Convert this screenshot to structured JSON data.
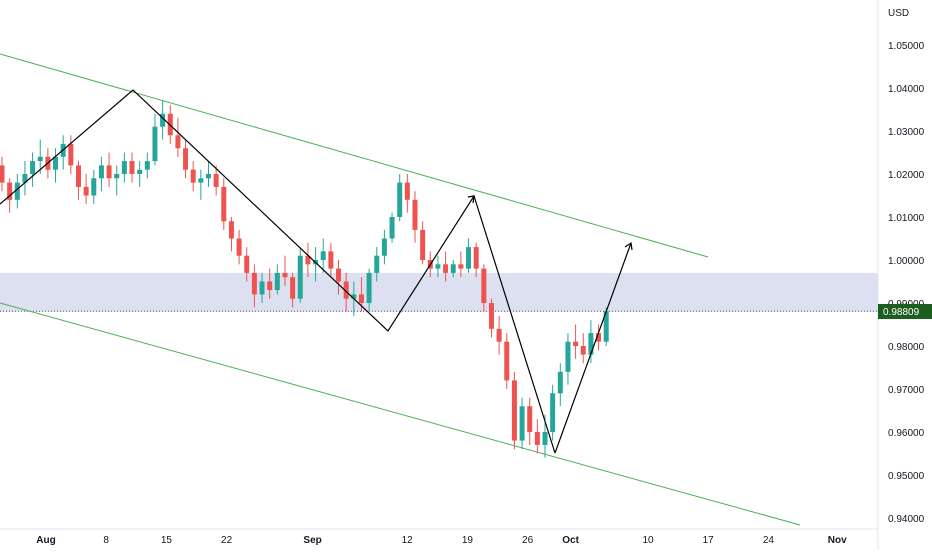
{
  "chart_data": {
    "type": "candlestick",
    "currency": "USD",
    "last_price": "0.98809",
    "y_ticks": [
      "1.05000",
      "1.04000",
      "1.03000",
      "1.02000",
      "1.01000",
      "1.00000",
      "0.99000",
      "0.98000",
      "0.97000",
      "0.96000",
      "0.95000",
      "0.94000"
    ],
    "x_ticks": [
      "Aug",
      "8",
      "15",
      "22",
      "Sep",
      "12",
      "19",
      "26",
      "Oct",
      "10",
      "17",
      "24",
      "Nov"
    ],
    "ylim": [
      0.9388,
      1.0574
    ],
    "grid": false,
    "colors": {
      "up": "#26a69a",
      "down": "#ef5350",
      "channel": "#4caf50",
      "zone": "#d6dbef",
      "pattern": "#000000",
      "price_label": "#1b5e20"
    },
    "candles_ohlc": [
      [
        1.022,
        1.024,
        1.016,
        1.018
      ],
      [
        1.018,
        1.019,
        1.011,
        1.014
      ],
      [
        1.014,
        1.02,
        1.012,
        1.018
      ],
      [
        1.018,
        1.023,
        1.015,
        1.02
      ],
      [
        1.02,
        1.025,
        1.017,
        1.023
      ],
      [
        1.023,
        1.028,
        1.02,
        1.024
      ],
      [
        1.024,
        1.026,
        1.019,
        1.021
      ],
      [
        1.021,
        1.026,
        1.018,
        1.024
      ],
      [
        1.024,
        1.029,
        1.021,
        1.027
      ],
      [
        1.027,
        1.029,
        1.02,
        1.022
      ],
      [
        1.022,
        1.023,
        1.014,
        1.017
      ],
      [
        1.017,
        1.02,
        1.013,
        1.015
      ],
      [
        1.015,
        1.021,
        1.013,
        1.019
      ],
      [
        1.019,
        1.024,
        1.016,
        1.022
      ],
      [
        1.022,
        1.025,
        1.017,
        1.019
      ],
      [
        1.019,
        1.022,
        1.015,
        1.02
      ],
      [
        1.02,
        1.025,
        1.018,
        1.023
      ],
      [
        1.023,
        1.025,
        1.018,
        1.02
      ],
      [
        1.02,
        1.023,
        1.017,
        1.021
      ],
      [
        1.021,
        1.025,
        1.019,
        1.023
      ],
      [
        1.023,
        1.034,
        1.022,
        1.031
      ],
      [
        1.031,
        1.037,
        1.028,
        1.034
      ],
      [
        1.034,
        1.036,
        1.027,
        1.029
      ],
      [
        1.029,
        1.033,
        1.024,
        1.026
      ],
      [
        1.026,
        1.028,
        1.019,
        1.021
      ],
      [
        1.021,
        1.023,
        1.016,
        1.018
      ],
      [
        1.018,
        1.021,
        1.014,
        1.019
      ],
      [
        1.019,
        1.023,
        1.017,
        1.02
      ],
      [
        1.02,
        1.022,
        1.015,
        1.017
      ],
      [
        1.017,
        1.019,
        1.007,
        1.009
      ],
      [
        1.009,
        1.01,
        1.002,
        1.005
      ],
      [
        1.005,
        1.007,
        0.999,
        1.001
      ],
      [
        1.001,
        1.003,
        0.995,
        0.997
      ],
      [
        0.997,
        0.999,
        0.989,
        0.992
      ],
      [
        0.992,
        0.997,
        0.99,
        0.995
      ],
      [
        0.995,
        0.998,
        0.991,
        0.993
      ],
      [
        0.993,
        0.999,
        0.992,
        0.997
      ],
      [
        0.997,
        1.001,
        0.994,
        0.996
      ],
      [
        0.996,
        0.997,
        0.989,
        0.991
      ],
      [
        0.991,
        1.003,
        0.99,
        1.001
      ],
      [
        1.001,
        1.004,
        0.996,
        0.999
      ],
      [
        0.999,
        1.003,
        0.995,
        1.0
      ],
      [
        1.0,
        1.005,
        0.997,
        1.002
      ],
      [
        1.002,
        1.004,
        0.996,
        0.998
      ],
      [
        0.998,
        1.0,
        0.992,
        0.995
      ],
      [
        0.995,
        0.997,
        0.988,
        0.991
      ],
      [
        0.991,
        0.995,
        0.987,
        0.992
      ],
      [
        0.992,
        0.996,
        0.988,
        0.99
      ],
      [
        0.99,
        0.998,
        0.988,
        0.997
      ],
      [
        0.997,
        1.003,
        0.995,
        1.001
      ],
      [
        1.001,
        1.007,
        0.999,
        1.005
      ],
      [
        1.005,
        1.011,
        1.004,
        1.01
      ],
      [
        1.01,
        1.02,
        1.009,
        1.018
      ],
      [
        1.018,
        1.02,
        1.011,
        1.014
      ],
      [
        1.014,
        1.016,
        1.004,
        1.007
      ],
      [
        1.007,
        1.009,
        0.999,
        1.0
      ],
      [
        1.0,
        1.002,
        0.996,
        0.998
      ],
      [
        0.998,
        1.001,
        0.996,
        0.999
      ],
      [
        0.999,
        1.002,
        0.995,
        0.997
      ],
      [
        0.997,
        1.0,
        0.996,
        0.999
      ],
      [
        0.999,
        1.002,
        0.996,
        0.998
      ],
      [
        0.998,
        1.005,
        0.997,
        1.003
      ],
      [
        1.003,
        1.004,
        0.996,
        0.998
      ],
      [
        0.998,
        0.999,
        0.988,
        0.99
      ],
      [
        0.99,
        0.991,
        0.982,
        0.984
      ],
      [
        0.984,
        0.987,
        0.978,
        0.981
      ],
      [
        0.981,
        0.983,
        0.97,
        0.972
      ],
      [
        0.972,
        0.974,
        0.956,
        0.958
      ],
      [
        0.958,
        0.968,
        0.956,
        0.966
      ],
      [
        0.966,
        0.968,
        0.957,
        0.96
      ],
      [
        0.96,
        0.963,
        0.955,
        0.957
      ],
      [
        0.957,
        0.964,
        0.954,
        0.96
      ],
      [
        0.96,
        0.971,
        0.958,
        0.969
      ],
      [
        0.969,
        0.976,
        0.966,
        0.974
      ],
      [
        0.974,
        0.983,
        0.971,
        0.981
      ],
      [
        0.981,
        0.985,
        0.977,
        0.98
      ],
      [
        0.98,
        0.983,
        0.976,
        0.978
      ],
      [
        0.978,
        0.986,
        0.976,
        0.983
      ],
      [
        0.983,
        0.985,
        0.979,
        0.981
      ],
      [
        0.981,
        0.989,
        0.98,
        0.9881
      ]
    ],
    "candle_step_days": 1.6
  }
}
